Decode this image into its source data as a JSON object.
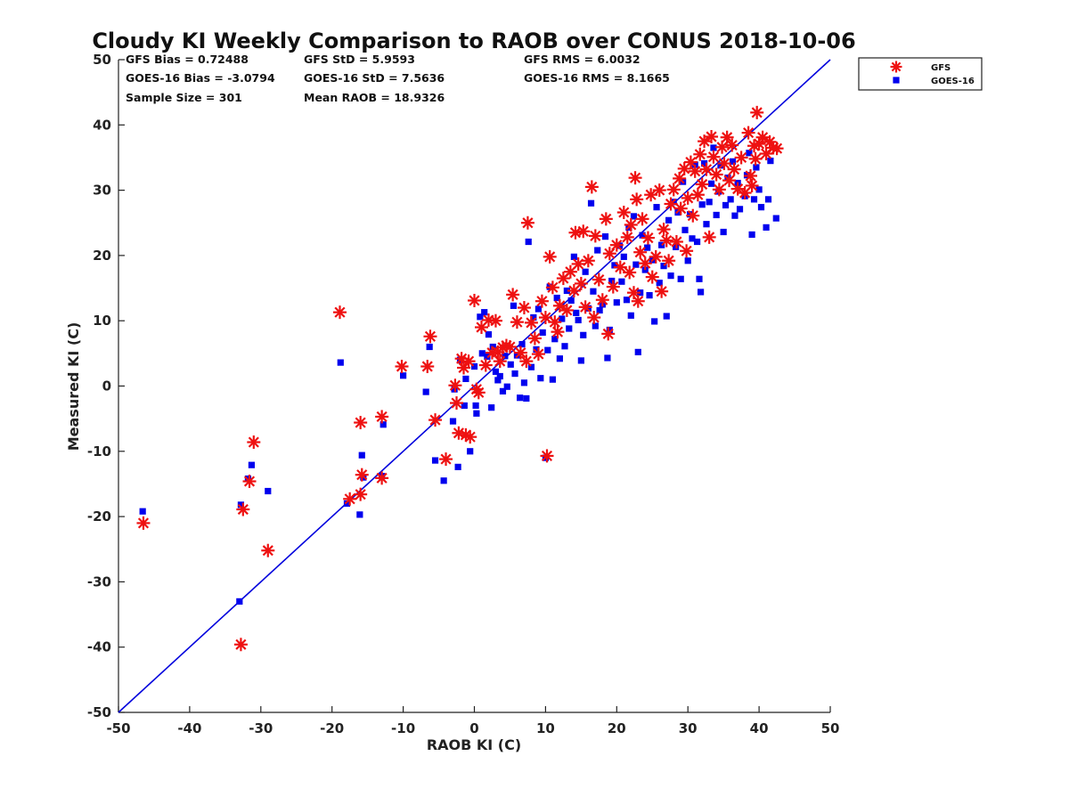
{
  "chart_data": {
    "type": "scatter",
    "title": "Cloudy KI Weekly Comparison to RAOB over CONUS 2018-10-06",
    "xlabel": "RAOB KI (C)",
    "ylabel": "Measured KI (C)",
    "xlim": [
      -50,
      50
    ],
    "ylim": [
      -50,
      50
    ],
    "xticks": [
      "-50",
      "-40",
      "-30",
      "-20",
      "-10",
      "0",
      "10",
      "20",
      "30",
      "40",
      "50"
    ],
    "yticks": [
      "50",
      "40",
      "30",
      "20",
      "10",
      "0",
      "-10",
      "-20",
      "-30",
      "-40",
      "-50"
    ],
    "legend_position": "outside-top-right",
    "stats": [
      "GFS Bias = 0.72488",
      "GFS StD = 5.9593",
      "GFS RMS = 6.0032",
      "GOES-16 Bias = -3.0794",
      "GOES-16 StD = 7.5636",
      "GOES-16 RMS = 8.1665",
      "Sample Size = 301",
      "Mean RAOB = 18.9326"
    ],
    "reference_line": {
      "from": [
        -50,
        -50
      ],
      "to": [
        50,
        50
      ],
      "color": "#0000dd"
    },
    "series": [
      {
        "name": "GFS",
        "marker": "asterisk",
        "color": "#ee1111",
        "points": [
          [
            -46.5,
            -21
          ],
          [
            -32.8,
            -39.6
          ],
          [
            -32.5,
            -18.9
          ],
          [
            -31.6,
            -14.6
          ],
          [
            -31,
            -8.6
          ],
          [
            -29,
            -25.2
          ],
          [
            -18.9,
            11.3
          ],
          [
            -17.5,
            -17.3
          ],
          [
            -16,
            -16.6
          ],
          [
            -16,
            -5.6
          ],
          [
            -15.8,
            -13.6
          ],
          [
            -13,
            -4.7
          ],
          [
            -13,
            -14.1
          ],
          [
            -10.2,
            3
          ],
          [
            -6.6,
            3
          ],
          [
            -6.2,
            7.6
          ],
          [
            -5.5,
            -5.2
          ],
          [
            -4,
            -11.2
          ],
          [
            -2.7,
            0.1
          ],
          [
            -2.5,
            -2.6
          ],
          [
            -2.2,
            -7.2
          ],
          [
            -1.8,
            4.2
          ],
          [
            -1.5,
            2.8
          ],
          [
            -1.2,
            -7.5
          ],
          [
            -0.8,
            3.8
          ],
          [
            -0.6,
            -7.8
          ],
          [
            0,
            13.1
          ],
          [
            0.3,
            -0.5
          ],
          [
            0.6,
            -1
          ],
          [
            1,
            9
          ],
          [
            1.6,
            3.2
          ],
          [
            2,
            10.1
          ],
          [
            2.5,
            5.1
          ],
          [
            3,
            10
          ],
          [
            3.3,
            5.2
          ],
          [
            3.6,
            3.8
          ],
          [
            4,
            5.9
          ],
          [
            4.5,
            6.2
          ],
          [
            5,
            6
          ],
          [
            5.4,
            14
          ],
          [
            6,
            9.8
          ],
          [
            6.5,
            5.1
          ],
          [
            7,
            12
          ],
          [
            7.3,
            3.8
          ],
          [
            7.5,
            25
          ],
          [
            8,
            9.7
          ],
          [
            8.5,
            7.3
          ],
          [
            9,
            4.9
          ],
          [
            9.5,
            13
          ],
          [
            10,
            10.5
          ],
          [
            10.2,
            -10.7
          ],
          [
            10.6,
            19.8
          ],
          [
            11,
            15.1
          ],
          [
            11.3,
            9.8
          ],
          [
            11.7,
            8.3
          ],
          [
            12,
            12.3
          ],
          [
            12.5,
            16.5
          ],
          [
            13,
            11.6
          ],
          [
            13.5,
            17.5
          ],
          [
            14,
            14.6
          ],
          [
            14.2,
            23.5
          ],
          [
            14.6,
            18.7
          ],
          [
            15,
            15.7
          ],
          [
            15.3,
            23.7
          ],
          [
            15.6,
            12.1
          ],
          [
            16,
            19.2
          ],
          [
            16.5,
            30.5
          ],
          [
            16.8,
            10.5
          ],
          [
            17,
            23
          ],
          [
            17.5,
            16.3
          ],
          [
            18,
            13.2
          ],
          [
            18.5,
            25.6
          ],
          [
            18.8,
            8
          ],
          [
            19,
            20.3
          ],
          [
            19.5,
            15.2
          ],
          [
            20,
            21.6
          ],
          [
            20.5,
            18.2
          ],
          [
            21,
            26.6
          ],
          [
            21.5,
            22.8
          ],
          [
            21.8,
            17.4
          ],
          [
            22,
            24.7
          ],
          [
            22.4,
            14.3
          ],
          [
            22.6,
            31.9
          ],
          [
            22.8,
            28.6
          ],
          [
            23,
            13
          ],
          [
            23.3,
            20.5
          ],
          [
            23.6,
            25.6
          ],
          [
            24,
            18.8
          ],
          [
            24.4,
            22.7
          ],
          [
            24.8,
            29.3
          ],
          [
            25,
            16.7
          ],
          [
            25.5,
            19.8
          ],
          [
            26,
            30
          ],
          [
            26.3,
            14.5
          ],
          [
            26.6,
            24
          ],
          [
            27,
            22.3
          ],
          [
            27.3,
            19.2
          ],
          [
            27.6,
            27.9
          ],
          [
            28,
            30.1
          ],
          [
            28.4,
            22.1
          ],
          [
            28.8,
            31.8
          ],
          [
            29,
            27.2
          ],
          [
            29.5,
            33.3
          ],
          [
            29.8,
            20.7
          ],
          [
            30,
            28.8
          ],
          [
            30.4,
            34.3
          ],
          [
            30.7,
            26.1
          ],
          [
            31,
            32.9
          ],
          [
            31.4,
            29.3
          ],
          [
            31.7,
            35.5
          ],
          [
            32,
            30.9
          ],
          [
            32.3,
            37.5
          ],
          [
            32.6,
            33.2
          ],
          [
            33,
            22.8
          ],
          [
            33.3,
            38.2
          ],
          [
            33.6,
            35.1
          ],
          [
            34,
            32.4
          ],
          [
            34.4,
            30.1
          ],
          [
            34.8,
            36.6
          ],
          [
            35.1,
            34.1
          ],
          [
            35.5,
            38.1
          ],
          [
            35.8,
            31.5
          ],
          [
            36.2,
            36.9
          ],
          [
            36.5,
            33.2
          ],
          [
            37,
            30.2
          ],
          [
            37.5,
            35
          ],
          [
            38,
            29.6
          ],
          [
            38.5,
            38.8
          ],
          [
            38.8,
            32.2
          ],
          [
            39,
            30.7
          ],
          [
            39.3,
            36.8
          ],
          [
            39.5,
            34.8
          ],
          [
            39.7,
            41.9
          ],
          [
            40,
            37.1
          ],
          [
            40.5,
            38.1
          ],
          [
            41,
            35.6
          ],
          [
            41.5,
            37.4
          ],
          [
            42,
            36.5
          ],
          [
            42.5,
            36.4
          ]
        ]
      },
      {
        "name": "GOES-16",
        "marker": "square",
        "color": "#0000ee",
        "points": [
          [
            -46.6,
            -19.2
          ],
          [
            -33,
            -33
          ],
          [
            -32.8,
            -18.2
          ],
          [
            -31.8,
            -14.2
          ],
          [
            -31.3,
            -12.1
          ],
          [
            -29,
            -16.1
          ],
          [
            -18.8,
            3.6
          ],
          [
            -17.9,
            -18
          ],
          [
            -16.1,
            -19.7
          ],
          [
            -15.8,
            -10.6
          ],
          [
            -15.6,
            -14
          ],
          [
            -12.8,
            -5.9
          ],
          [
            -13,
            -13.8
          ],
          [
            -10,
            1.6
          ],
          [
            -6.8,
            -0.9
          ],
          [
            -6.3,
            6
          ],
          [
            -5.5,
            -11.4
          ],
          [
            -4.3,
            -14.5
          ],
          [
            -3,
            -5.4
          ],
          [
            -2.8,
            -0.5
          ],
          [
            -2.3,
            -12.4
          ],
          [
            -2,
            4
          ],
          [
            -1.4,
            -3
          ],
          [
            -1.2,
            1.1
          ],
          [
            -0.6,
            -10
          ],
          [
            0,
            3
          ],
          [
            0.2,
            -3
          ],
          [
            0.3,
            -4.2
          ],
          [
            0.8,
            10.6
          ],
          [
            1.1,
            5
          ],
          [
            1.4,
            11.3
          ],
          [
            1.8,
            4.5
          ],
          [
            2,
            7.9
          ],
          [
            2.4,
            -3.3
          ],
          [
            2.6,
            6
          ],
          [
            3,
            2.2
          ],
          [
            3.3,
            0.9
          ],
          [
            3.6,
            1.5
          ],
          [
            4,
            -0.8
          ],
          [
            4.3,
            4.6
          ],
          [
            4.6,
            -0.1
          ],
          [
            5.1,
            3.3
          ],
          [
            5.5,
            12.3
          ],
          [
            5.7,
            1.9
          ],
          [
            6,
            4.7
          ],
          [
            6.4,
            -1.8
          ],
          [
            6.7,
            6.4
          ],
          [
            7,
            0.5
          ],
          [
            7.3,
            -1.9
          ],
          [
            7.6,
            22.1
          ],
          [
            8,
            2.9
          ],
          [
            8.3,
            10.5
          ],
          [
            8.7,
            5.6
          ],
          [
            9,
            11.8
          ],
          [
            9.3,
            1.2
          ],
          [
            9.6,
            8.2
          ],
          [
            10,
            -11
          ],
          [
            10.3,
            5.5
          ],
          [
            10.6,
            15.2
          ],
          [
            11,
            1
          ],
          [
            11.3,
            7.2
          ],
          [
            11.6,
            13.5
          ],
          [
            12,
            4.2
          ],
          [
            12.3,
            10.3
          ],
          [
            12.7,
            6.1
          ],
          [
            13,
            14.6
          ],
          [
            13.3,
            8.8
          ],
          [
            13.6,
            13.1
          ],
          [
            14,
            19.8
          ],
          [
            14.3,
            11.2
          ],
          [
            14.6,
            10.1
          ],
          [
            15,
            3.9
          ],
          [
            15.3,
            7.8
          ],
          [
            15.6,
            17.5
          ],
          [
            16,
            11.9
          ],
          [
            16.4,
            28
          ],
          [
            16.7,
            14.5
          ],
          [
            17,
            9.2
          ],
          [
            17.3,
            20.8
          ],
          [
            17.6,
            11.6
          ],
          [
            18,
            12.5
          ],
          [
            18.4,
            22.9
          ],
          [
            18.7,
            4.3
          ],
          [
            19,
            8.6
          ],
          [
            19.3,
            16.1
          ],
          [
            19.7,
            18.5
          ],
          [
            20,
            12.8
          ],
          [
            20.4,
            21.5
          ],
          [
            20.7,
            16
          ],
          [
            21,
            19.8
          ],
          [
            21.4,
            13.2
          ],
          [
            21.7,
            24.3
          ],
          [
            22,
            10.8
          ],
          [
            22.4,
            26
          ],
          [
            22.7,
            18.6
          ],
          [
            23,
            5.2
          ],
          [
            23.3,
            14.3
          ],
          [
            23.6,
            23.1
          ],
          [
            24,
            17.8
          ],
          [
            24.3,
            21.2
          ],
          [
            24.6,
            13.9
          ],
          [
            25,
            19.3
          ],
          [
            25.3,
            9.9
          ],
          [
            25.6,
            27.4
          ],
          [
            26,
            15.8
          ],
          [
            26.3,
            21.6
          ],
          [
            26.6,
            18.4
          ],
          [
            27,
            10.7
          ],
          [
            27.3,
            25.4
          ],
          [
            27.6,
            16.9
          ],
          [
            28,
            28.2
          ],
          [
            28.3,
            21.3
          ],
          [
            28.6,
            26.6
          ],
          [
            29,
            16.4
          ],
          [
            29.3,
            31.3
          ],
          [
            29.6,
            23.9
          ],
          [
            30,
            19.2
          ],
          [
            30.3,
            26.3
          ],
          [
            30.6,
            22.6
          ],
          [
            31,
            33.9
          ],
          [
            31.3,
            22.1
          ],
          [
            31.6,
            16.4
          ],
          [
            31.8,
            14.4
          ],
          [
            32,
            27.8
          ],
          [
            32.3,
            34.1
          ],
          [
            32.6,
            24.8
          ],
          [
            33,
            28.2
          ],
          [
            33.3,
            31
          ],
          [
            33.6,
            36.5
          ],
          [
            34,
            26.2
          ],
          [
            34.3,
            29.8
          ],
          [
            34.6,
            33.8
          ],
          [
            35,
            23.6
          ],
          [
            35.3,
            27.7
          ],
          [
            35.6,
            31.9
          ],
          [
            36,
            28.6
          ],
          [
            36.3,
            34.4
          ],
          [
            36.6,
            26.1
          ],
          [
            37,
            31.1
          ],
          [
            37.3,
            27.1
          ],
          [
            38,
            29.1
          ],
          [
            38.3,
            32.3
          ],
          [
            38.6,
            35.7
          ],
          [
            39,
            23.2
          ],
          [
            39.3,
            28.6
          ],
          [
            39.6,
            33.5
          ],
          [
            40,
            30.1
          ],
          [
            40.3,
            27.4
          ],
          [
            41,
            24.3
          ],
          [
            41.3,
            28.6
          ],
          [
            41.6,
            34.5
          ],
          [
            42.4,
            25.7
          ]
        ]
      }
    ]
  }
}
